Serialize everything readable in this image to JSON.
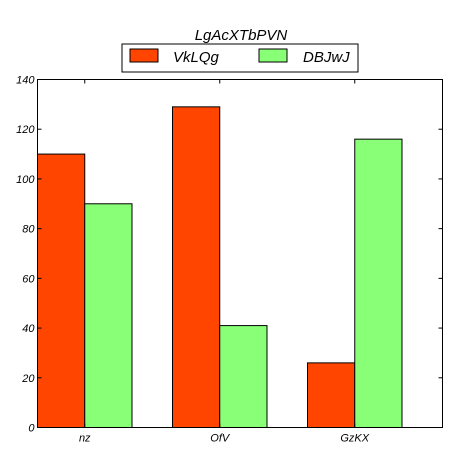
{
  "chart_data": {
    "type": "bar",
    "title": "LgAcXTbPVN",
    "xlabel": "",
    "ylabel": "",
    "categories": [
      "nz",
      "OfV",
      "GzKX"
    ],
    "series": [
      {
        "name": "VkLQg",
        "values": [
          110,
          129,
          26
        ],
        "color": "#ff4500"
      },
      {
        "name": "DBJwJ",
        "values": [
          90,
          41,
          116
        ],
        "color": "#88ff77"
      }
    ],
    "ylim": [
      0,
      140
    ],
    "yticks": [
      0,
      20,
      40,
      60,
      80,
      100,
      120,
      140
    ],
    "yticks_labels": [
      "0",
      "20",
      "40",
      "60",
      "80",
      "100",
      "120",
      "140"
    ],
    "grid": false,
    "legend_position": "top-center"
  }
}
